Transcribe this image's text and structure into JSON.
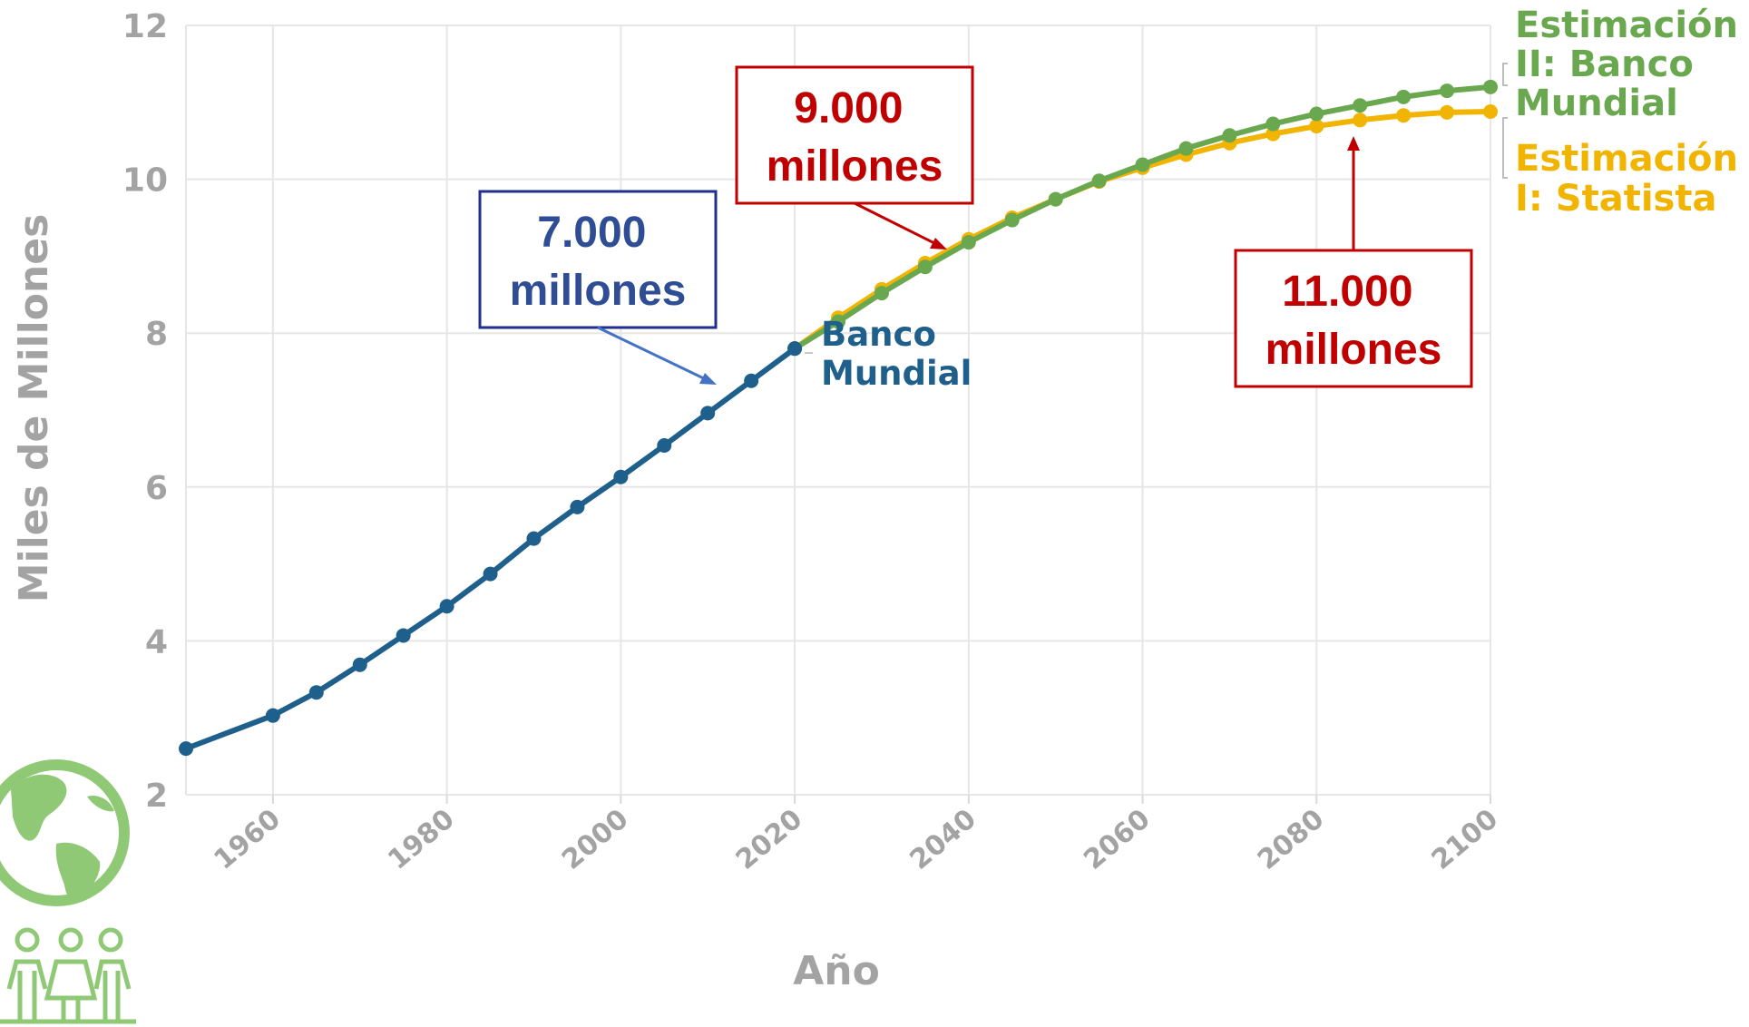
{
  "chart_data": {
    "type": "line",
    "xlabel": "Año",
    "ylabel": "Miles de Millones",
    "xlim": [
      1950,
      2100
    ],
    "ylim": [
      2,
      12
    ],
    "xticks": [
      "1960",
      "1980",
      "2000",
      "2020",
      "2040",
      "2060",
      "2080",
      "2100"
    ],
    "yticks": [
      "2",
      "4",
      "6",
      "8",
      "10",
      "12"
    ],
    "grid": true,
    "series": [
      {
        "name": "Banco Mundial",
        "color": "#1f5f8b",
        "x": [
          1950,
          1960,
          1965,
          1970,
          1975,
          1980,
          1985,
          1990,
          1995,
          2000,
          2005,
          2010,
          2015,
          2020
        ],
        "values": [
          2.6,
          3.03,
          3.33,
          3.69,
          4.07,
          4.45,
          4.87,
          5.33,
          5.74,
          6.13,
          6.54,
          6.96,
          7.38,
          7.8
        ]
      },
      {
        "name": "Estimación II: Banco Mundial",
        "color": "#6aa84f",
        "x": [
          2020,
          2025,
          2030,
          2035,
          2040,
          2045,
          2050,
          2055,
          2060,
          2065,
          2070,
          2075,
          2080,
          2085,
          2090,
          2095,
          2100
        ],
        "values": [
          7.8,
          8.15,
          8.52,
          8.86,
          9.18,
          9.47,
          9.74,
          9.98,
          10.19,
          10.4,
          10.57,
          10.72,
          10.85,
          10.96,
          11.07,
          11.15,
          11.2
        ]
      },
      {
        "name": "Estimación I: Statista",
        "color": "#f1b400",
        "x": [
          2020,
          2025,
          2030,
          2035,
          2040,
          2045,
          2050,
          2055,
          2060,
          2065,
          2070,
          2075,
          2080,
          2085,
          2090,
          2095,
          2100
        ],
        "values": [
          7.8,
          8.2,
          8.57,
          8.91,
          9.22,
          9.5,
          9.74,
          9.97,
          10.15,
          10.32,
          10.47,
          10.59,
          10.69,
          10.77,
          10.83,
          10.87,
          10.88
        ]
      }
    ],
    "series_labels": {
      "banco_line1": "Banco",
      "banco_line2": "Mundial",
      "est2_line1": "Estimación",
      "est2_line2": "II: Banco",
      "est2_line3": "Mundial",
      "est1_line1": "Estimación",
      "est1_line2": "I: Statista"
    },
    "annotations": [
      {
        "line1": "7.000",
        "line2": "millones",
        "color": "#2f4d94",
        "arrow_color": "#4472c4"
      },
      {
        "line1": "9.000",
        "line2": "millones",
        "color": "#c00000",
        "arrow_color": "#c00000"
      },
      {
        "line1": "11.000",
        "line2": "millones",
        "color": "#c00000",
        "arrow_color": "#c00000"
      }
    ]
  },
  "icons": {
    "globe": "globe-icon",
    "people": "family-icon",
    "color": "#8fc975"
  }
}
